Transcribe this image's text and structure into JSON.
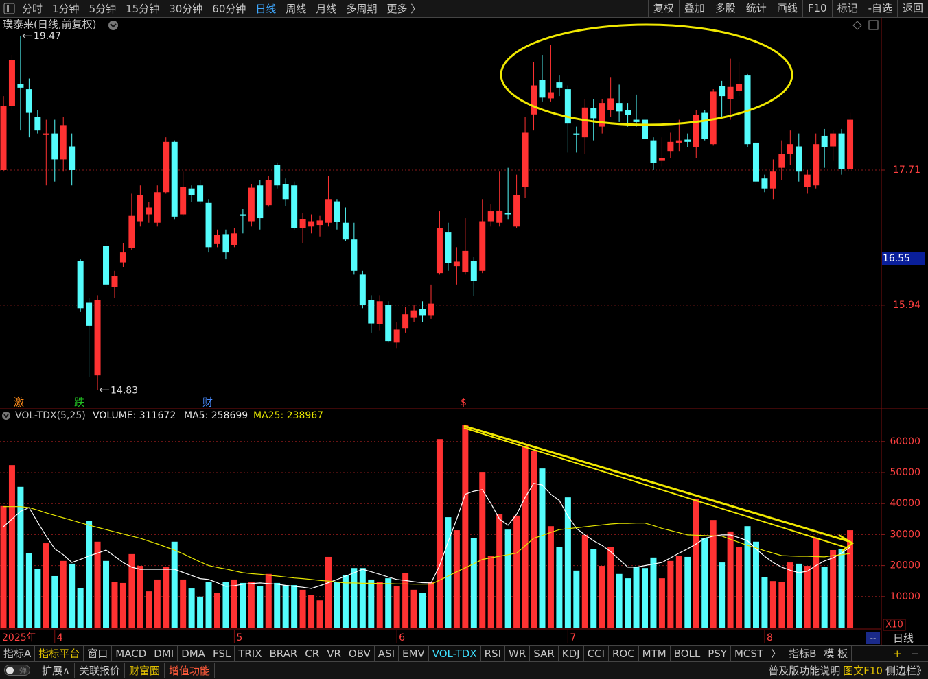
{
  "toolbar": {
    "left": [
      "分时",
      "1分钟",
      "5分钟",
      "15分钟",
      "30分钟",
      "60分钟",
      "日线",
      "周线",
      "月线",
      "多周期",
      "更多 〉"
    ],
    "right": [
      "复权",
      "叠加",
      "多股",
      "统计",
      "画线",
      "F10",
      "标记",
      "-自选",
      "返回"
    ]
  },
  "chart_title": "璞泰来(日线,前复权)",
  "event_markers": [
    "激",
    "跌",
    "财",
    "$"
  ],
  "chart_data": [
    {
      "type": "candlestick",
      "up_color": "#ff3232",
      "down_color": "#54fcfc",
      "ylim": [
        14.59,
        19.67
      ],
      "yticks": [
        15.94,
        17.71
      ],
      "grid": true,
      "annotations": [
        19.47,
        14.83
      ],
      "last_price_label": 16.55,
      "open": [
        17.71,
        18.55,
        18.84,
        18.77,
        18.41,
        18.17,
        18.19,
        17.85,
        18.02,
        16.52,
        15.97,
        15.02,
        16.72,
        16.18,
        16.5,
        16.69,
        17.04,
        17.13,
        17.02,
        17.42,
        18.08,
        17.13,
        17.47,
        17.51,
        17.28,
        16.74,
        16.87,
        16.73,
        17.13,
        17.04,
        17.51,
        17.25,
        17.78,
        17.53,
        17.51,
        16.95,
        16.97,
        16.99,
        17.02,
        17.3,
        17.02,
        16.8,
        16.34,
        16.01,
        15.69,
        15.94,
        15.45,
        15.64,
        15.78,
        15.89,
        15.8,
        16.36,
        16.9,
        16.45,
        16.37,
        16.52,
        16.39,
        17.04,
        17.02,
        17.15,
        16.97,
        17.49,
        18.44,
        18.89,
        18.65,
        18.86,
        18.77,
        18.19,
        18.14,
        18.52,
        18.28,
        18.5,
        18.59,
        18.5,
        18.37,
        18.37,
        18.1,
        17.83,
        17.96,
        18.07,
        18.11,
        18.01,
        18.46,
        18.05,
        18.81,
        18.64,
        18.75,
        18.95,
        18.07,
        17.6,
        17.47,
        17.74,
        17.92,
        18.02,
        17.49,
        17.51,
        18.16,
        18.02,
        18.19,
        17.72
      ],
      "high": [
        18.68,
        19.22,
        19.47,
        18.91,
        18.5,
        18.37,
        18.37,
        18.41,
        18.19,
        16.54,
        16.03,
        16.07,
        16.78,
        16.39,
        16.75,
        17.4,
        17.51,
        17.29,
        17.51,
        18.14,
        18.1,
        17.69,
        17.51,
        17.58,
        17.33,
        16.93,
        16.93,
        16.95,
        17.2,
        17.53,
        17.58,
        17.63,
        17.81,
        17.6,
        17.56,
        17.15,
        17.13,
        17.11,
        17.63,
        17.33,
        17.22,
        17.02,
        16.39,
        16.07,
        16.07,
        15.99,
        15.72,
        15.92,
        15.94,
        15.99,
        16.21,
        17.17,
        17.02,
        16.7,
        17.08,
        16.57,
        17.33,
        17.26,
        17.69,
        17.74,
        17.65,
        18.41,
        19.13,
        19.22,
        19.35,
        18.95,
        18.82,
        18.28,
        18.64,
        18.64,
        18.64,
        18.93,
        18.83,
        18.59,
        18.7,
        18.57,
        18.14,
        18.14,
        18.2,
        18.37,
        18.19,
        18.5,
        18.5,
        18.77,
        18.88,
        19.17,
        19.13,
        18.97,
        18.1,
        17.65,
        17.85,
        18.1,
        18.23,
        18.19,
        17.71,
        18.19,
        18.25,
        18.23,
        18.25,
        18.46
      ],
      "low": [
        17.69,
        18.5,
        18.23,
        18.14,
        18.19,
        17.51,
        17.56,
        17.69,
        17.51,
        15.85,
        15.0,
        14.83,
        16.16,
        16.03,
        16.44,
        16.66,
        16.97,
        17.02,
        16.97,
        17.4,
        17.06,
        17.11,
        17.29,
        17.26,
        16.63,
        16.7,
        16.54,
        16.7,
        16.88,
        16.97,
        16.93,
        17.23,
        17.47,
        17.24,
        16.93,
        16.75,
        16.88,
        16.84,
        16.97,
        16.93,
        16.78,
        16.34,
        15.9,
        15.58,
        15.61,
        15.45,
        15.37,
        15.58,
        15.72,
        15.72,
        15.76,
        16.34,
        16.39,
        16.21,
        16.34,
        16.06,
        16.36,
        16.97,
        16.97,
        17.06,
        16.95,
        17.35,
        18.23,
        18.61,
        18.61,
        18.68,
        17.94,
        17.94,
        17.92,
        18.1,
        18.19,
        18.41,
        18.34,
        18.28,
        18.28,
        18.1,
        17.71,
        17.76,
        17.87,
        17.96,
        18.01,
        17.87,
        18.1,
        18.03,
        18.41,
        18.37,
        18.68,
        18.01,
        17.51,
        17.42,
        17.33,
        17.58,
        17.78,
        17.56,
        17.4,
        17.47,
        17.74,
        17.83,
        17.65,
        17.71
      ],
      "close": [
        18.55,
        19.15,
        18.79,
        18.46,
        18.23,
        18.19,
        17.85,
        18.3,
        17.71,
        15.9,
        15.67,
        16.01,
        16.21,
        16.32,
        16.63,
        17.11,
        17.38,
        17.22,
        17.42,
        18.08,
        17.1,
        17.49,
        17.38,
        17.3,
        16.7,
        16.86,
        16.63,
        16.88,
        17.11,
        17.48,
        17.08,
        17.58,
        17.51,
        17.33,
        16.95,
        17.07,
        17.04,
        17.05,
        17.33,
        17.03,
        16.8,
        16.39,
        15.94,
        15.7,
        15.99,
        15.47,
        15.62,
        15.82,
        15.87,
        15.8,
        15.96,
        16.95,
        16.49,
        16.51,
        16.65,
        16.26,
        17.04,
        17.17,
        17.18,
        17.13,
        17.38,
        18.2,
        18.82,
        18.66,
        18.73,
        18.79,
        18.32,
        18.17,
        18.53,
        18.39,
        18.59,
        18.65,
        18.48,
        18.43,
        18.34,
        18.12,
        17.8,
        17.87,
        18.08,
        18.1,
        18.08,
        18.43,
        18.12,
        18.74,
        18.68,
        18.8,
        18.84,
        18.05,
        17.56,
        17.47,
        17.69,
        17.92,
        18.05,
        17.69,
        17.65,
        18.05,
        18.01,
        18.19,
        17.72,
        18.37
      ]
    },
    {
      "type": "bar",
      "title": "VOL-TDX(5,25)",
      "legend": [
        "VOLUME: 311672",
        "MA5: 258699",
        "MA25: 238967"
      ],
      "ylim": [
        0,
        70000
      ],
      "yticks": [
        10000,
        20000,
        30000,
        40000,
        50000,
        60000
      ],
      "grid": true,
      "categories": [
        "2025年",
        null,
        null,
        null,
        null,
        null,
        "4",
        null,
        null,
        null,
        null,
        null,
        null,
        null,
        null,
        null,
        null,
        null,
        null,
        null,
        null,
        null,
        null,
        null,
        null,
        null,
        null,
        "5",
        null,
        null,
        null,
        null,
        null,
        null,
        null,
        null,
        null,
        null,
        null,
        null,
        null,
        null,
        null,
        null,
        null,
        null,
        "6",
        null,
        null,
        null,
        null,
        null,
        null,
        null,
        null,
        null,
        null,
        null,
        null,
        null,
        null,
        null,
        null,
        null,
        null,
        null,
        "7",
        null,
        null,
        null,
        null,
        null,
        null,
        null,
        null,
        null,
        null,
        null,
        null,
        null,
        null,
        null,
        null,
        null,
        null,
        null,
        null,
        null,
        null,
        "8",
        null,
        null,
        null,
        null,
        null,
        null,
        null,
        null,
        null,
        null
      ],
      "values": [
        39200,
        52400,
        45400,
        23900,
        19000,
        27200,
        16600,
        21500,
        20600,
        12800,
        34300,
        27700,
        21500,
        14800,
        14400,
        23700,
        19900,
        11700,
        15500,
        19500,
        27700,
        15500,
        12600,
        10000,
        14800,
        11100,
        14800,
        15500,
        14400,
        14800,
        13300,
        17300,
        14400,
        13700,
        13700,
        12200,
        10400,
        8800,
        22800,
        14800,
        17000,
        19200,
        19200,
        15500,
        14800,
        15900,
        13300,
        17700,
        12200,
        11100,
        14800,
        60800,
        35600,
        31400,
        65300,
        28800,
        50200,
        23200,
        36500,
        31600,
        36100,
        58600,
        56900,
        51300,
        32700,
        25900,
        42000,
        18400,
        29900,
        25400,
        19900,
        25900,
        17300,
        15900,
        19500,
        19200,
        22600,
        15900,
        21500,
        23200,
        22800,
        41600,
        28800,
        34700,
        21000,
        31000,
        26100,
        32700,
        27700,
        16200,
        15000,
        14600,
        21000,
        20600,
        19900,
        28800,
        19500,
        25000,
        25400,
        31400
      ],
      "lines": [
        {
          "color": "#ffffff",
          "values": [
            32500,
            35000,
            37500,
            38700,
            34000,
            29500,
            25400,
            23500,
            21000,
            22000,
            23100,
            24000,
            25000,
            23000,
            21000,
            19500,
            18800,
            18800,
            18800,
            18800,
            18800,
            17800,
            16800,
            15800,
            15500,
            14500,
            13300,
            13500,
            14000,
            14200,
            14400,
            14200,
            14000,
            13600,
            13300,
            13000,
            12600,
            13500,
            14500,
            15500,
            16600,
            17700,
            18800,
            18000,
            17200,
            16300,
            15500,
            15200,
            14800,
            14500,
            14400,
            20000,
            27700,
            35000,
            43000,
            44000,
            44500,
            40000,
            35000,
            33000,
            36500,
            42000,
            46500,
            46000,
            43000,
            41000,
            36000,
            32000,
            29900,
            28000,
            26500,
            24500,
            22000,
            19500,
            19500,
            20000,
            20500,
            21000,
            22500,
            24000,
            25400,
            27000,
            28800,
            29500,
            29900,
            29900,
            29000,
            28000,
            25400,
            23000,
            21000,
            19500,
            18500,
            17700,
            18200,
            20000,
            21500,
            22500,
            24000,
            25900
          ]
        },
        {
          "color": "#e6e600",
          "values": [
            39000,
            39000,
            39000,
            38700,
            37900,
            37000,
            36200,
            35400,
            34600,
            33800,
            33000,
            32300,
            31600,
            30900,
            30200,
            29500,
            28800,
            27900,
            27000,
            26000,
            25000,
            23800,
            22500,
            21200,
            20000,
            19400,
            18900,
            18300,
            17700,
            17400,
            17200,
            16900,
            16600,
            16300,
            16000,
            15800,
            15500,
            15200,
            15000,
            14700,
            14400,
            14400,
            14300,
            14300,
            14200,
            14200,
            14100,
            14100,
            14000,
            14000,
            14000,
            15300,
            16600,
            18000,
            19300,
            20600,
            22000,
            22500,
            23000,
            23500,
            24000,
            26400,
            28800,
            29700,
            30700,
            31600,
            31900,
            32200,
            32500,
            32800,
            33100,
            33400,
            33600,
            33600,
            33700,
            33700,
            32900,
            32000,
            31300,
            30600,
            29900,
            29800,
            29700,
            29600,
            29500,
            28500,
            27500,
            26500,
            25700,
            24800,
            24000,
            23200,
            23100,
            23000,
            23000,
            22900,
            22800,
            23200,
            23500,
            23900
          ]
        }
      ]
    }
  ],
  "axis_period": "日线",
  "scale_note": "X10",
  "dash": "--",
  "zoom": [
    "+",
    "−"
  ],
  "indicator_tabs": [
    "指标A",
    "指标平台",
    "窗口",
    "MACD",
    "DMI",
    "DMA",
    "FSL",
    "TRIX",
    "BRAR",
    "CR",
    "VR",
    "OBV",
    "ASI",
    "EMV",
    "VOL-TDX",
    "RSI",
    "WR",
    "SAR",
    "KDJ",
    "CCI",
    "ROC",
    "MTM",
    "BOLL",
    "PSY",
    "MCST",
    "〉",
    "指标B",
    "模 板"
  ],
  "toggle_label": "弹",
  "bottom_bar": {
    "left": [
      "扩展∧",
      "关联报价",
      "财富圈",
      "增值功能"
    ],
    "right": [
      "普及版功能说明",
      "图文F10",
      "侧边栏》"
    ]
  }
}
